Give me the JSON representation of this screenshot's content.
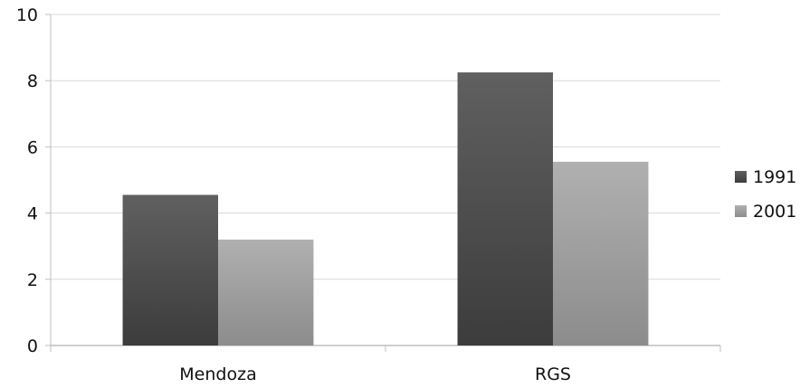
{
  "chart_data": {
    "type": "bar",
    "title": "",
    "xlabel": "",
    "ylabel": "",
    "categories": [
      "Mendoza",
      "RGS"
    ],
    "series": [
      {
        "name": "1991",
        "values": [
          4.55,
          8.25
        ],
        "color": "#4a4a4a"
      },
      {
        "name": "2001",
        "values": [
          3.2,
          5.55
        ],
        "color": "#9a9a9a"
      }
    ],
    "ylim": [
      0,
      10
    ],
    "yticks": [
      0,
      2,
      4,
      6,
      8,
      10
    ],
    "grid": true,
    "legend_position": "right"
  }
}
